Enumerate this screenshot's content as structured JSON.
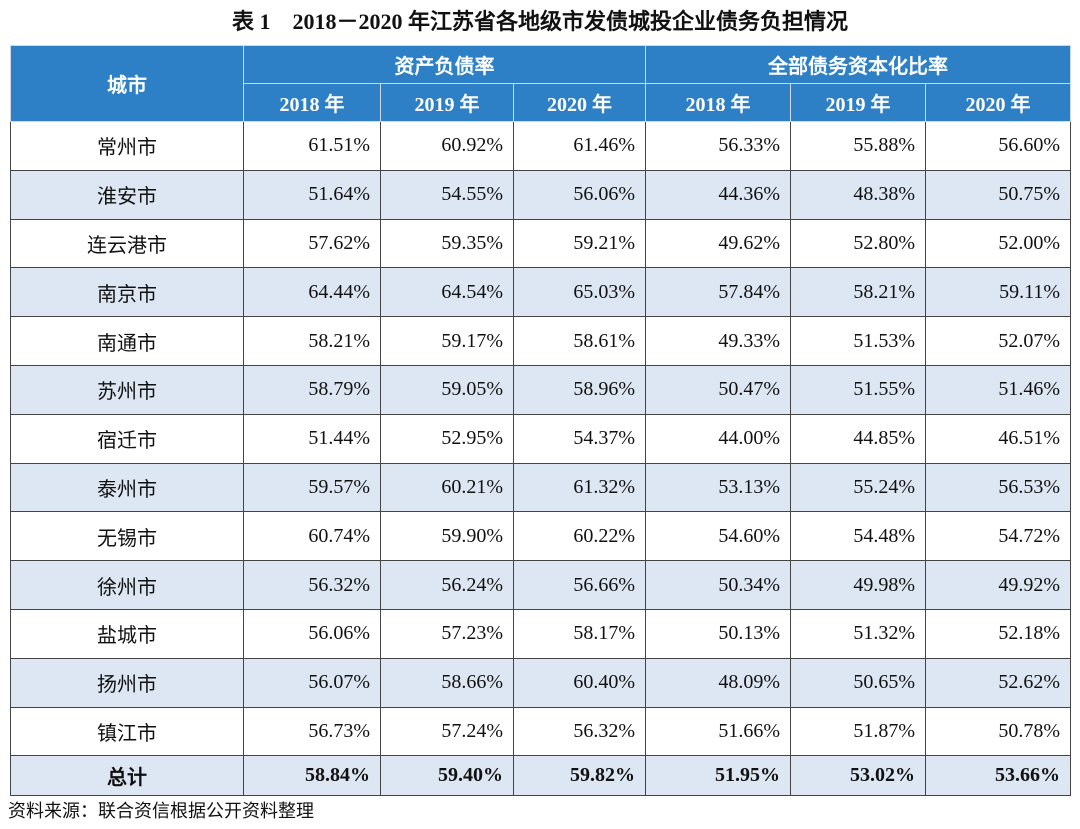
{
  "title": "表 1　2018－2020 年江苏省各地级市发债城投企业债务负担情况",
  "table": {
    "header": {
      "city": "城市",
      "groups": [
        "资产负债率",
        "全部债务资本化比率"
      ],
      "years": [
        "2018 年",
        "2019 年",
        "2020 年",
        "2018 年",
        "2019 年",
        "2020 年"
      ]
    },
    "rows": [
      {
        "city": "常州市",
        "values": [
          "61.51%",
          "60.92%",
          "61.46%",
          "56.33%",
          "55.88%",
          "56.60%"
        ]
      },
      {
        "city": "淮安市",
        "values": [
          "51.64%",
          "54.55%",
          "56.06%",
          "44.36%",
          "48.38%",
          "50.75%"
        ]
      },
      {
        "city": "连云港市",
        "values": [
          "57.62%",
          "59.35%",
          "59.21%",
          "49.62%",
          "52.80%",
          "52.00%"
        ]
      },
      {
        "city": "南京市",
        "values": [
          "64.44%",
          "64.54%",
          "65.03%",
          "57.84%",
          "58.21%",
          "59.11%"
        ]
      },
      {
        "city": "南通市",
        "values": [
          "58.21%",
          "59.17%",
          "58.61%",
          "49.33%",
          "51.53%",
          "52.07%"
        ]
      },
      {
        "city": "苏州市",
        "values": [
          "58.79%",
          "59.05%",
          "58.96%",
          "50.47%",
          "51.55%",
          "51.46%"
        ]
      },
      {
        "city": "宿迁市",
        "values": [
          "51.44%",
          "52.95%",
          "54.37%",
          "44.00%",
          "44.85%",
          "46.51%"
        ]
      },
      {
        "city": "泰州市",
        "values": [
          "59.57%",
          "60.21%",
          "61.32%",
          "53.13%",
          "55.24%",
          "56.53%"
        ]
      },
      {
        "city": "无锡市",
        "values": [
          "60.74%",
          "59.90%",
          "60.22%",
          "54.60%",
          "54.48%",
          "54.72%"
        ]
      },
      {
        "city": "徐州市",
        "values": [
          "56.32%",
          "56.24%",
          "56.66%",
          "50.34%",
          "49.98%",
          "49.92%"
        ]
      },
      {
        "city": "盐城市",
        "values": [
          "56.06%",
          "57.23%",
          "58.17%",
          "50.13%",
          "51.32%",
          "52.18%"
        ]
      },
      {
        "city": "扬州市",
        "values": [
          "56.07%",
          "58.66%",
          "60.40%",
          "48.09%",
          "50.65%",
          "52.62%"
        ]
      },
      {
        "city": "镇江市",
        "values": [
          "56.73%",
          "57.24%",
          "56.32%",
          "51.66%",
          "51.87%",
          "50.78%"
        ]
      }
    ],
    "total": {
      "city": "总计",
      "values": [
        "58.84%",
        "59.40%",
        "59.82%",
        "51.95%",
        "53.02%",
        "53.66%"
      ]
    }
  },
  "source": "资料来源：联合资信根据公开资料整理"
}
